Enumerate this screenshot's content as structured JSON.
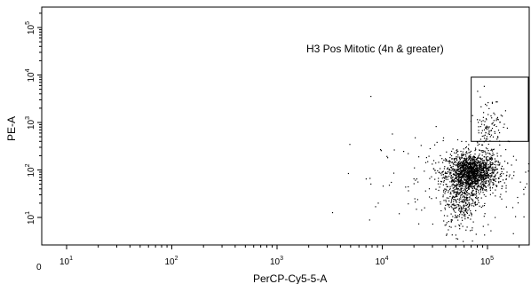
{
  "chart_data": {
    "type": "scatter",
    "xlabel": "PerCP-Cy5-5-A",
    "ylabel": "PE-A",
    "x_scale": "log",
    "y_scale": "log",
    "xlim": [
      0,
      250000
    ],
    "ylim": [
      0,
      250000
    ],
    "x_ticks": [
      {
        "label": "0",
        "exp": "",
        "value": 0
      },
      {
        "label": "10",
        "exp": "1",
        "value": 10
      },
      {
        "label": "10",
        "exp": "2",
        "value": 100
      },
      {
        "label": "10",
        "exp": "3",
        "value": 1000
      },
      {
        "label": "10",
        "exp": "4",
        "value": 10000
      },
      {
        "label": "10",
        "exp": "5",
        "value": 100000
      }
    ],
    "y_ticks": [
      {
        "label": "10",
        "exp": "1",
        "value": 10
      },
      {
        "label": "10",
        "exp": "2",
        "value": 100
      },
      {
        "label": "10",
        "exp": "3",
        "value": 1000
      },
      {
        "label": "10",
        "exp": "4",
        "value": 10000
      },
      {
        "label": "10",
        "exp": "5",
        "value": 100000
      }
    ],
    "gate": {
      "label": "H3 Pos Mitotic (4n & greater)",
      "x_range": [
        70000,
        250000
      ],
      "y_range": [
        400,
        9000
      ]
    },
    "populations": [
      {
        "name": "",
        "x_center": 70000,
        "x_spread": 0.12,
        "y_center": 90,
        "y_spread": 0.2,
        "count": 1500
      },
      {
        "name": "",
        "x_center": 55000,
        "x_spread": 0.08,
        "y_center": 25,
        "y_spread": 0.35,
        "count": 350
      },
      {
        "name": "",
        "x_center": 100000,
        "x_spread": 0.07,
        "y_center": 800,
        "y_spread": 0.35,
        "count": 120
      },
      {
        "name": "",
        "x_center": 60000,
        "x_spread": 0.45,
        "y_center": 60,
        "y_spread": 0.5,
        "count": 220
      }
    ]
  }
}
